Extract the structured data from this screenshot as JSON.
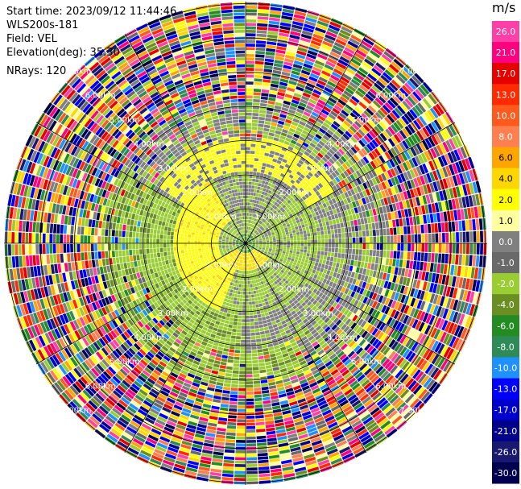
{
  "header": {
    "start_time": "Start time: 2023/09/12 11:44:46",
    "instrument": "WLS200s-181",
    "field": "Field: VEL",
    "elevation": "Elevation(deg): 35.30",
    "nrays": "NRays: 120"
  },
  "colorbar": {
    "unit": "m/s",
    "bins": [
      {
        "label": "26.0",
        "color": "#ff3fa8"
      },
      {
        "label": "21.0",
        "color": "#ff007f"
      },
      {
        "label": "17.0",
        "color": "#e60000"
      },
      {
        "label": "13.0",
        "color": "#ff2a00"
      },
      {
        "label": "10.0",
        "color": "#ff5a1e"
      },
      {
        "label": "8.0",
        "color": "#ff7f50"
      },
      {
        "label": "6.0",
        "color": "#ffa500"
      },
      {
        "label": "4.0",
        "color": "#ffd700"
      },
      {
        "label": "2.0",
        "color": "#ffff00"
      },
      {
        "label": "1.0",
        "color": "#ffffa0"
      },
      {
        "label": "0.0",
        "color": "#808080"
      },
      {
        "label": "-1.0",
        "color": "#696969"
      },
      {
        "label": "-2.0",
        "color": "#9acd32"
      },
      {
        "label": "-4.0",
        "color": "#6b8e23"
      },
      {
        "label": "-6.0",
        "color": "#228b22"
      },
      {
        "label": "-8.0",
        "color": "#2e8b57"
      },
      {
        "label": "-10.0",
        "color": "#1e90ff"
      },
      {
        "label": "-13.0",
        "color": "#0000ff"
      },
      {
        "label": "-17.0",
        "color": "#0000cd"
      },
      {
        "label": "-21.0",
        "color": "#00008b"
      },
      {
        "label": "-26.0",
        "color": "#191970"
      },
      {
        "label": "-30.0",
        "color": "#000050"
      }
    ]
  },
  "chart_data": {
    "type": "heatmap",
    "projection": "polar-ppi",
    "field": "VEL",
    "units": "m/s",
    "nrays": 120,
    "range_rings": [
      "1.00km",
      "2.00km",
      "3.00km",
      "4.00km",
      "5.00km",
      "6.00km",
      "7.00km"
    ],
    "structure": {
      "near_field": "ring of yellow / light-green / grey alternating velocities",
      "far_field": "noisy multicolored returns"
    }
  }
}
